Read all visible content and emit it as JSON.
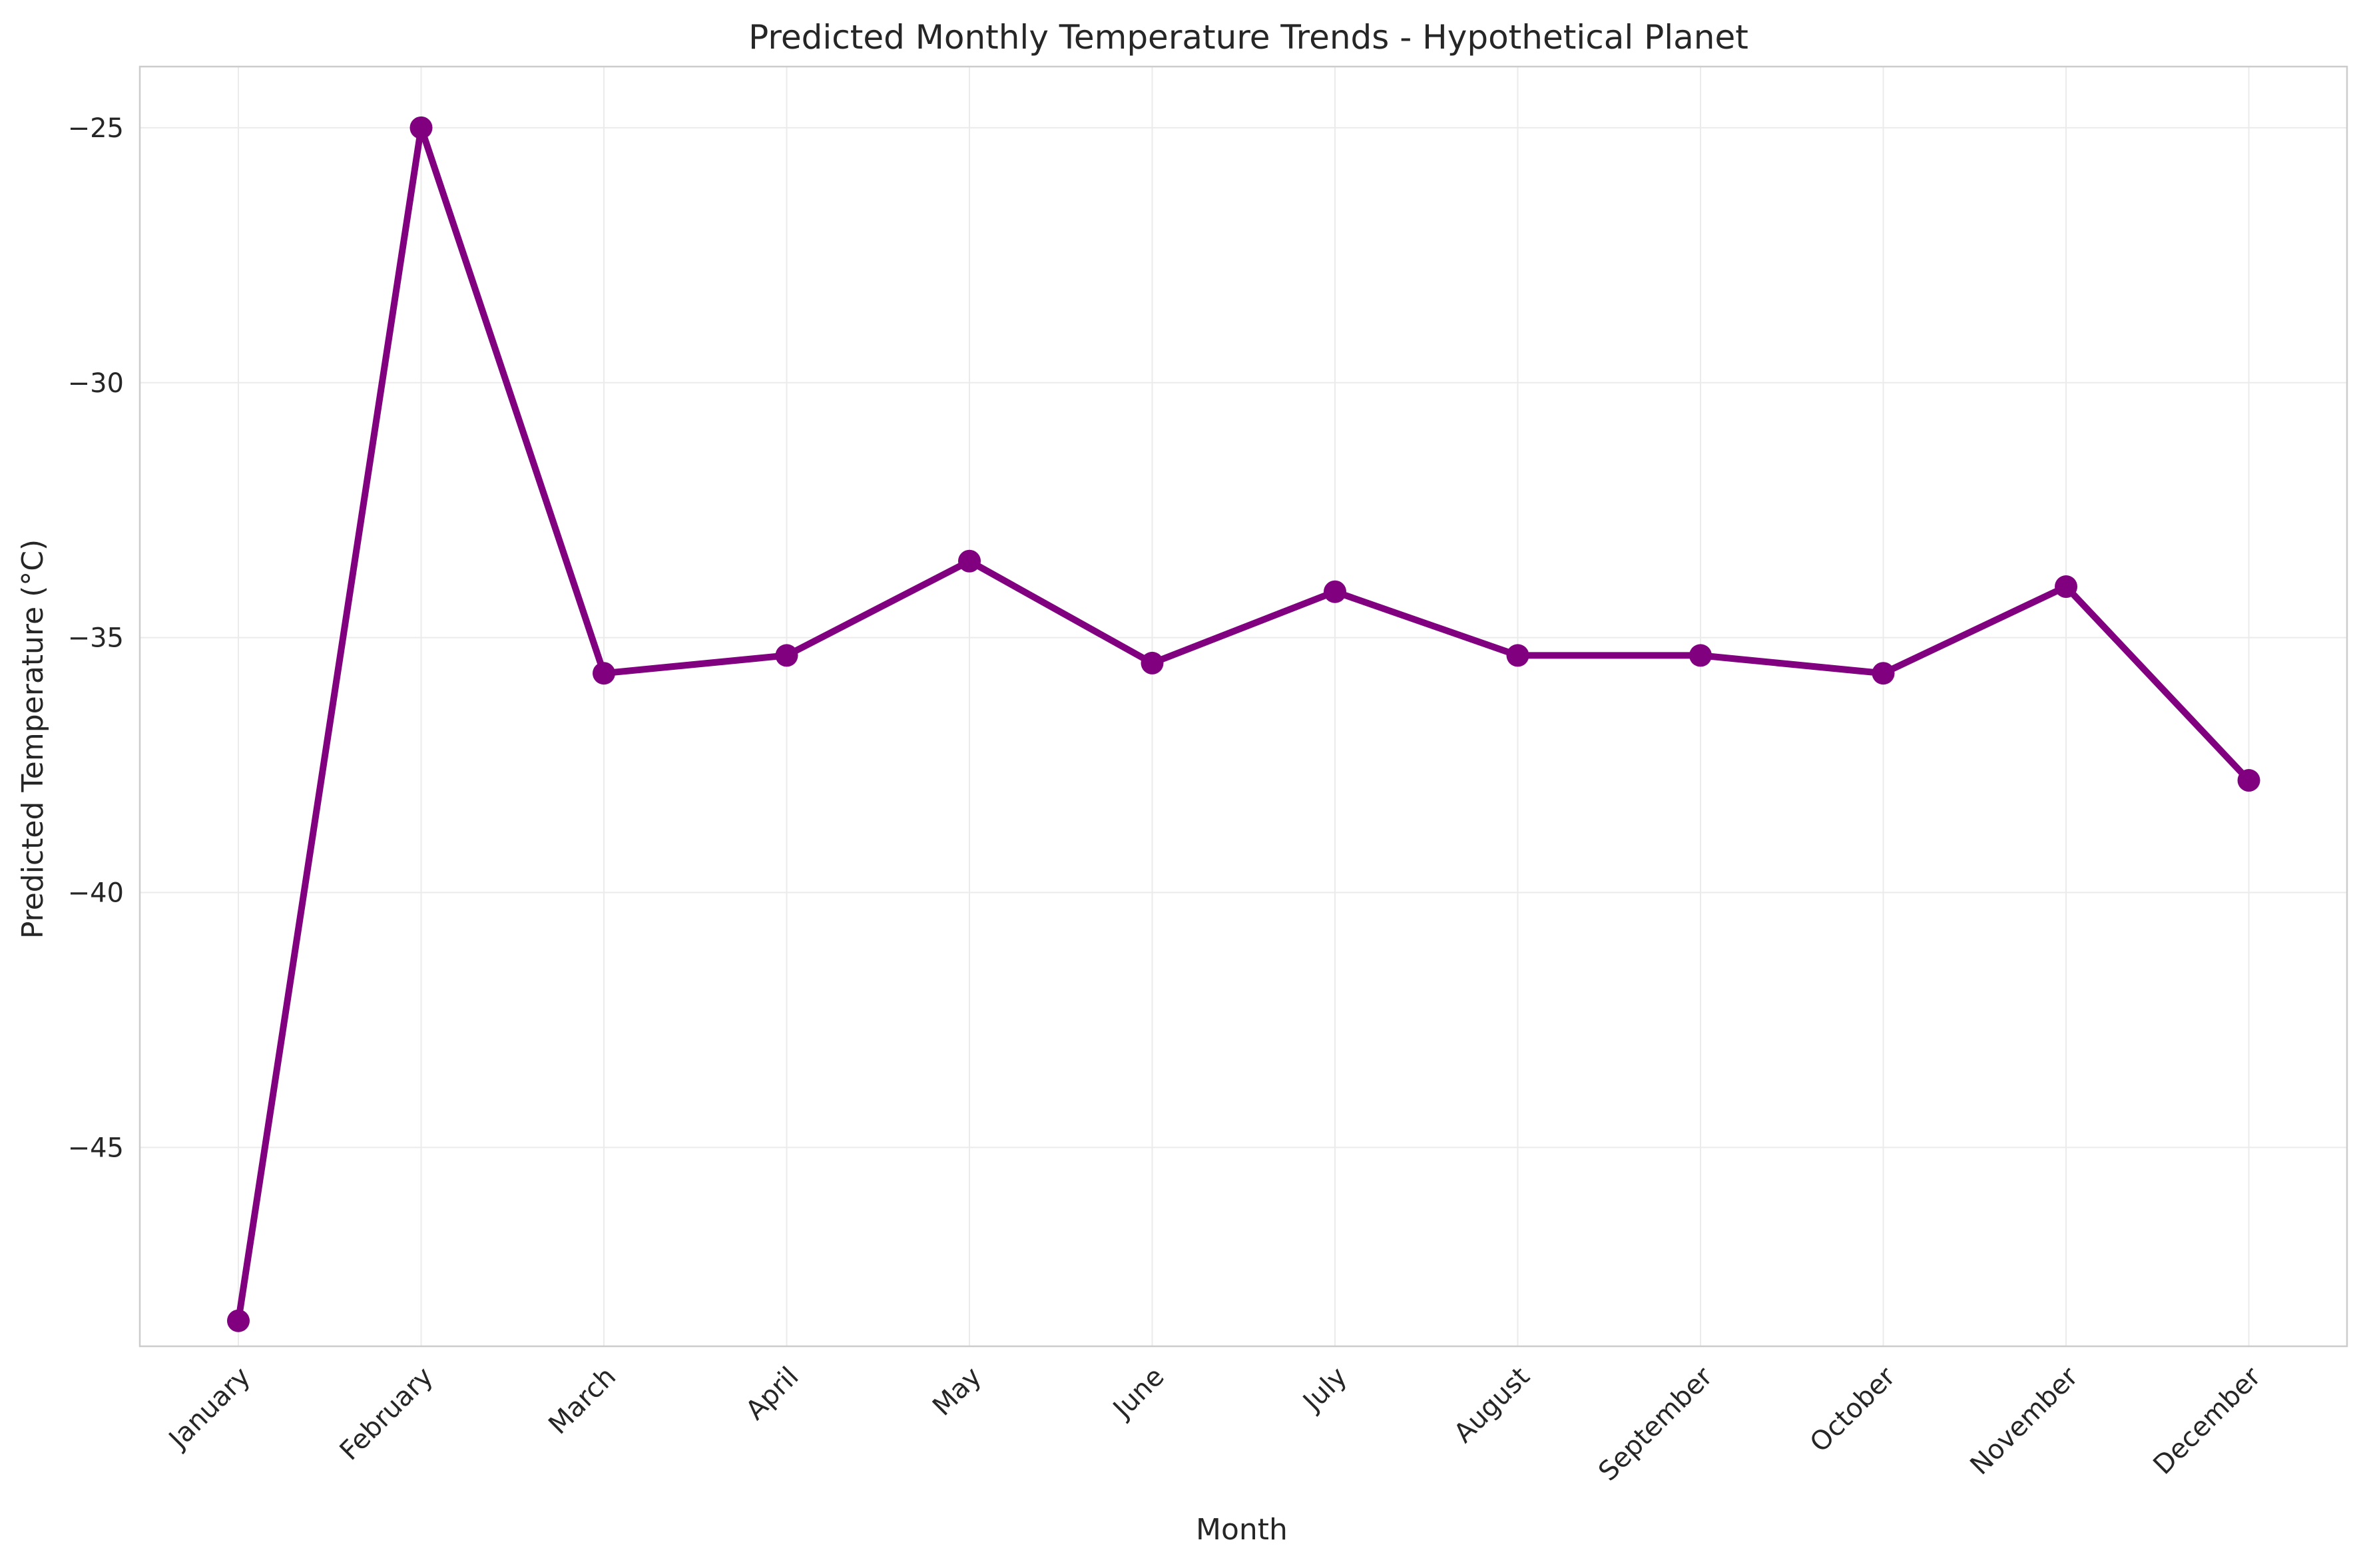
{
  "chart_data": {
    "type": "line",
    "title": "Predicted Monthly Temperature Trends - Hypothetical Planet",
    "xlabel": "Month",
    "ylabel": "Predicted Temperature (°C)",
    "categories": [
      "January",
      "February",
      "March",
      "April",
      "May",
      "June",
      "July",
      "August",
      "September",
      "October",
      "November",
      "December"
    ],
    "series": [
      {
        "values": [
          -48.4,
          -25.0,
          -35.7,
          -35.35,
          -33.5,
          -35.5,
          -34.1,
          -35.35,
          -35.35,
          -35.7,
          -34.0,
          -37.8
        ],
        "color": "#800080"
      }
    ],
    "ylim": [
      -48.9,
      -23.8
    ],
    "yticks": [
      -45,
      -40,
      -35,
      -30,
      -25
    ],
    "ytick_labels": [
      "−45",
      "−40",
      "−35",
      "−30",
      "−25"
    ],
    "grid": true,
    "legend": "none"
  }
}
